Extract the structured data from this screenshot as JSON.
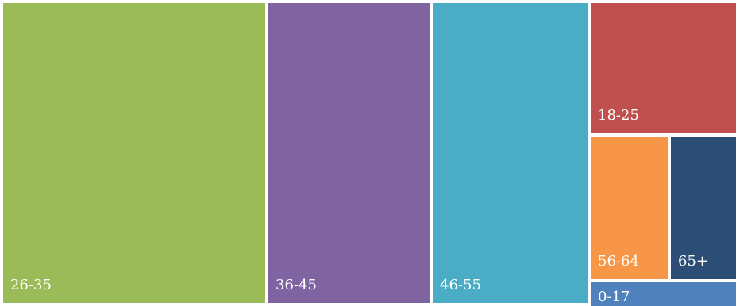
{
  "chart_data": {
    "type": "treemap",
    "title": "",
    "items": [
      {
        "label": "26-35",
        "color": "#9bbb59"
      },
      {
        "label": "36-45",
        "color": "#8064a2"
      },
      {
        "label": "46-55",
        "color": "#4bacc6"
      },
      {
        "label": "18-25",
        "color": "#c0504d"
      },
      {
        "label": "56-64",
        "color": "#f79646"
      },
      {
        "label": "65+",
        "color": "#2c4d75"
      },
      {
        "label": "0-17",
        "color": "#4f81bd"
      }
    ]
  }
}
